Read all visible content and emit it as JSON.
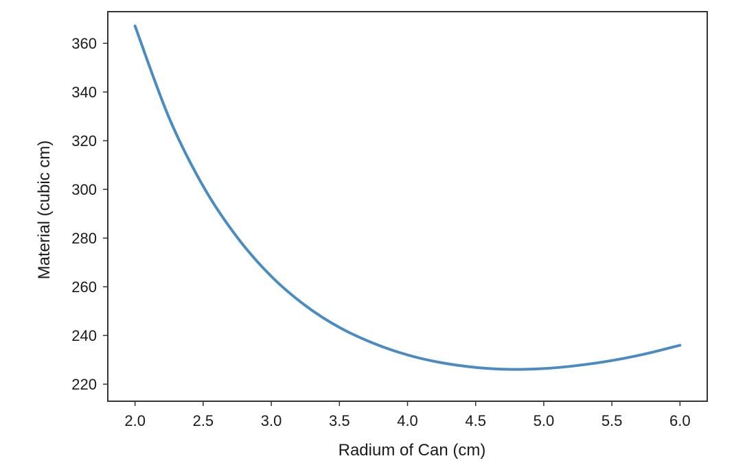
{
  "chart_data": {
    "type": "line",
    "title": "",
    "xlabel": "Radium of Can (cm)",
    "ylabel": "Material (cubic cm)",
    "xlim": [
      1.8,
      6.2
    ],
    "ylim": [
      213,
      373
    ],
    "xticks": [
      2.0,
      2.5,
      3.0,
      3.5,
      4.0,
      4.5,
      5.0,
      5.5,
      6.0
    ],
    "xtick_labels": [
      "2.0",
      "2.5",
      "3.0",
      "3.5",
      "4.0",
      "4.5",
      "5.0",
      "5.5",
      "6.0"
    ],
    "yticks": [
      220,
      240,
      260,
      280,
      300,
      320,
      340,
      360
    ],
    "ytick_labels": [
      "220",
      "240",
      "260",
      "280",
      "300",
      "320",
      "340",
      "360"
    ],
    "grid": false,
    "series": [
      {
        "name": "material",
        "color": "#4a8bc2",
        "x": [
          2.0,
          2.25,
          2.5,
          2.75,
          3.0,
          3.25,
          3.5,
          3.75,
          4.0,
          4.25,
          4.5,
          4.75,
          5.0,
          5.25,
          5.5,
          5.75,
          6.0
        ],
        "y": [
          367.1,
          329.4,
          301.3,
          280.3,
          264.3,
          252.3,
          243.3,
          236.8,
          232.0,
          228.8,
          226.9,
          226.1,
          226.4,
          227.7,
          229.7,
          232.5,
          236.0
        ]
      }
    ]
  }
}
